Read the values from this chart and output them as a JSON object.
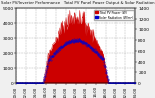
{
  "title": "Solar PV/Inverter Performance   Total PV Panel Power Output & Solar Radiation",
  "bg_color": "#f0f0f0",
  "plot_bg": "#ffffff",
  "grid_color": "#aaaaaa",
  "n_points": 288,
  "pv_color": "#cc0000",
  "rad_color": "#0000cc",
  "pv_peak": 4400,
  "rad_peak": 800,
  "ylim_left": [
    0,
    5000
  ],
  "ylim_right": [
    0,
    1400
  ],
  "yticks_left": [
    0,
    1000,
    2000,
    3000,
    4000,
    5000
  ],
  "yticks_right": [
    0,
    200,
    400,
    600,
    800,
    1000,
    1200,
    1400
  ],
  "legend_pv": "Total PV Power (W)",
  "legend_rad": "Solar Radiation (W/m²)"
}
